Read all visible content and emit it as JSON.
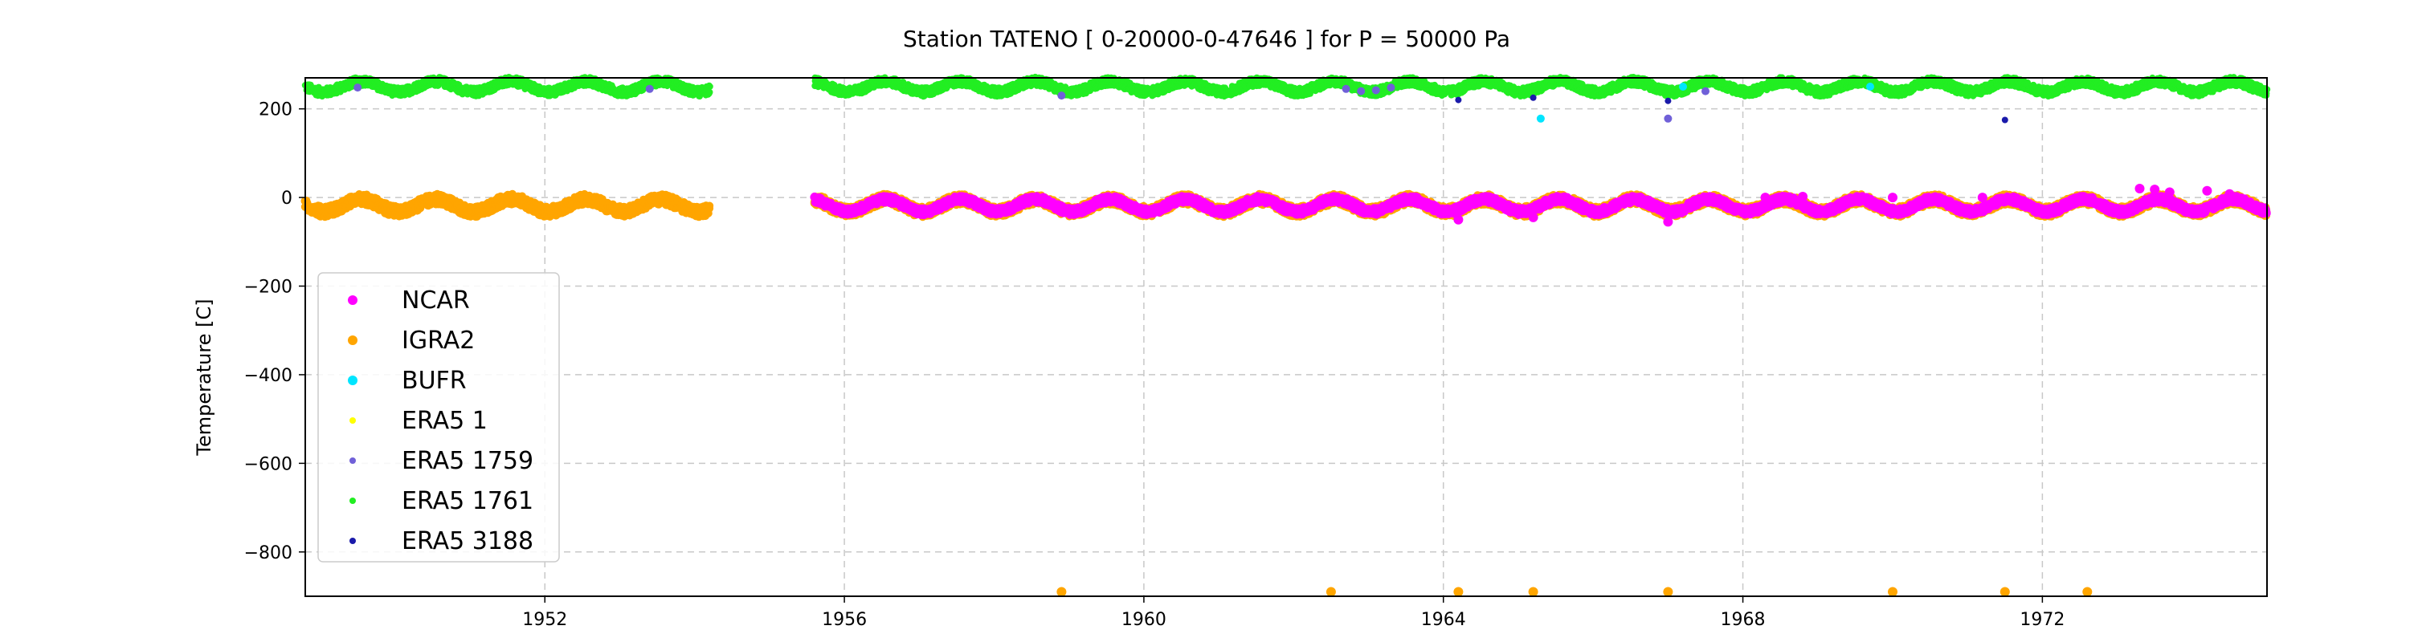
{
  "chart_data": {
    "type": "scatter",
    "title": "Station  TATENO [ 0-20000-0-47646 ]  for P = 50000 Pa",
    "xlabel": "",
    "ylabel": "Temperature [C]",
    "xlim": [
      1948.8,
      1975.0
    ],
    "ylim": [
      -900,
      270
    ],
    "xticks": [
      1952,
      1956,
      1960,
      1964,
      1968,
      1972
    ],
    "yticks": [
      200,
      0,
      -200,
      -400,
      -600,
      -800
    ],
    "grid": true,
    "legend_position": "lower-left",
    "gaps": [
      [
        1954.2,
        1955.6
      ]
    ],
    "series": [
      {
        "name": "NCAR",
        "color": "#ff00ff",
        "marker_size": 5,
        "base": -18,
        "amp": 14,
        "spread": 4,
        "start": 1955.6,
        "end": 1975.0,
        "points": [
          [
            1964.2,
            -50
          ],
          [
            1965.2,
            -45
          ],
          [
            1967.0,
            -55
          ],
          [
            1968.3,
            0
          ],
          [
            1968.8,
            2
          ],
          [
            1970.0,
            0
          ],
          [
            1971.2,
            0
          ],
          [
            1973.3,
            20
          ],
          [
            1973.5,
            18
          ],
          [
            1973.7,
            12
          ],
          [
            1974.2,
            15
          ],
          [
            1974.5,
            8
          ]
        ]
      },
      {
        "name": "IGRA2",
        "color": "#ffa500",
        "marker_size": 5,
        "base": -18,
        "amp": 14,
        "spread": 6,
        "start": 1948.8,
        "end": 1975.0,
        "points": [
          [
            1958.9,
            -890
          ],
          [
            1962.5,
            -890
          ],
          [
            1964.2,
            -890
          ],
          [
            1965.2,
            -890
          ],
          [
            1967.0,
            -890
          ],
          [
            1970.0,
            -890
          ],
          [
            1971.5,
            -890
          ],
          [
            1972.6,
            -890
          ]
        ]
      },
      {
        "name": "BUFR",
        "color": "#00e5ff",
        "marker_size": 4,
        "base": 250,
        "amp": 10,
        "spread": 0,
        "start": 1972.0,
        "end": 1972.0,
        "points": [
          [
            1965.3,
            178
          ],
          [
            1969.7,
            250
          ],
          [
            1967.2,
            250
          ]
        ]
      },
      {
        "name": "ERA5 1",
        "color": "#ffff00",
        "marker_size": 3,
        "base": 0,
        "amp": 0,
        "spread": 0,
        "start": 0,
        "end": 0,
        "points": []
      },
      {
        "name": "ERA5 1759",
        "color": "#7060d8",
        "marker_size": 4,
        "base": 245,
        "amp": 8,
        "spread": 0,
        "start": 0,
        "end": 0,
        "points": [
          [
            1949.5,
            248
          ],
          [
            1953.4,
            245
          ],
          [
            1962.7,
            245
          ],
          [
            1962.9,
            240
          ],
          [
            1963.1,
            242
          ],
          [
            1963.3,
            248
          ],
          [
            1967.0,
            178
          ],
          [
            1967.5,
            240
          ],
          [
            1958.9,
            230
          ]
        ]
      },
      {
        "name": "ERA5 1761",
        "color": "#22ee22",
        "marker_size": 4,
        "base": 250,
        "amp": 12,
        "spread": 5,
        "start": 1948.8,
        "end": 1975.0,
        "points": []
      },
      {
        "name": "ERA5 3188",
        "color": "#1a1aaa",
        "marker_size": 3,
        "base": 0,
        "amp": 0,
        "spread": 0,
        "start": 0,
        "end": 0,
        "points": [
          [
            1964.2,
            220
          ],
          [
            1965.2,
            225
          ],
          [
            1971.5,
            175
          ],
          [
            1967.0,
            218
          ]
        ]
      }
    ]
  }
}
